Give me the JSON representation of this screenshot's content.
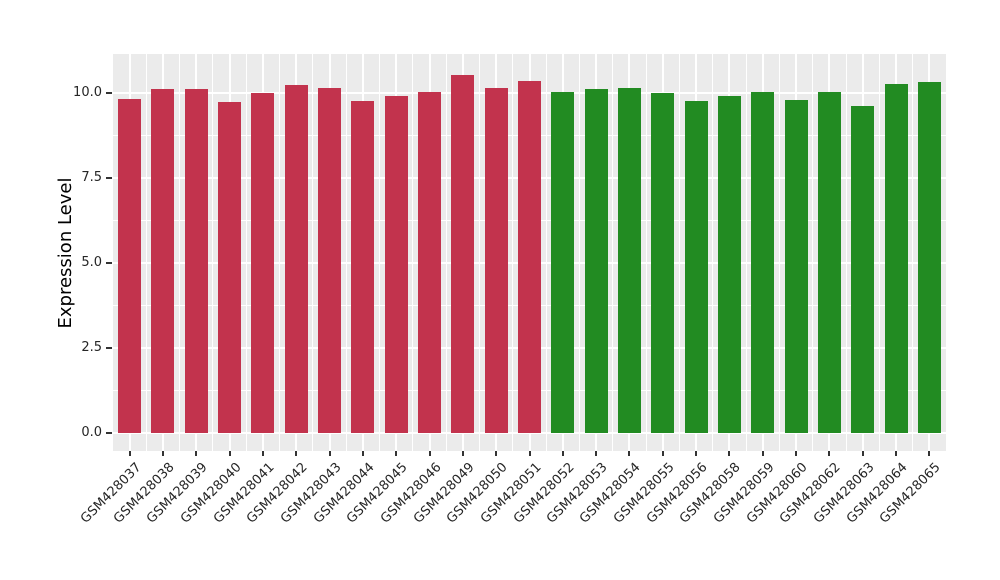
{
  "chart_data": {
    "type": "bar",
    "title": "",
    "xlabel": "",
    "ylabel": "Expression Level",
    "categories": [
      "GSM428037",
      "GSM428038",
      "GSM428039",
      "GSM428040",
      "GSM428041",
      "GSM428042",
      "GSM428043",
      "GSM428044",
      "GSM428045",
      "GSM428046",
      "GSM428049",
      "GSM428050",
      "GSM428051",
      "GSM428052",
      "GSM428053",
      "GSM428054",
      "GSM428055",
      "GSM428056",
      "GSM428058",
      "GSM428059",
      "GSM428060",
      "GSM428062",
      "GSM428063",
      "GSM428064",
      "GSM428065"
    ],
    "values": [
      9.83,
      10.13,
      10.13,
      9.76,
      10.0,
      10.24,
      10.16,
      9.78,
      9.93,
      10.03,
      10.55,
      10.16,
      10.36,
      10.05,
      10.13,
      10.17,
      10.0,
      9.77,
      9.92,
      10.05,
      9.8,
      10.05,
      9.63,
      10.29,
      10.33
    ],
    "bar_colors": [
      "#C2334D",
      "#C2334D",
      "#C2334D",
      "#C2334D",
      "#C2334D",
      "#C2334D",
      "#C2334D",
      "#C2334D",
      "#C2334D",
      "#C2334D",
      "#C2334D",
      "#C2334D",
      "#C2334D",
      "#228B22",
      "#228B22",
      "#228B22",
      "#228B22",
      "#228B22",
      "#228B22",
      "#228B22",
      "#228B22",
      "#228B22",
      "#228B22",
      "#228B22",
      "#228B22"
    ],
    "y_ticks": [
      "0.0",
      "2.5",
      "5.0",
      "7.5",
      "10.0"
    ],
    "ylim": [
      0,
      11.17
    ],
    "grid": true,
    "legend_position": "none",
    "panel_bg": "#EBEBEB",
    "grid_color": "#FFFFFF",
    "tick_color": "#333333",
    "group_colors": {
      "red_group": "#C2334D",
      "green_group": "#228B22"
    }
  }
}
